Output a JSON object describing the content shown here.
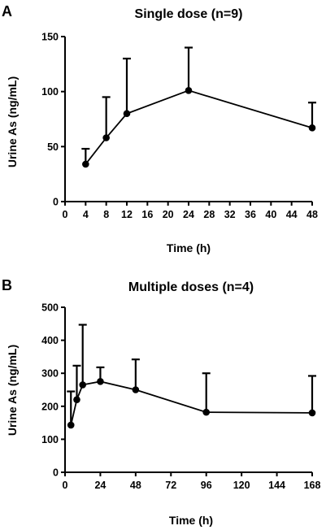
{
  "chart_data": [
    {
      "type": "line",
      "panel": "A",
      "title": "Single dose (n=9)",
      "xlabel": "Time (h)",
      "ylabel": "Urine As (ng/mL)",
      "xlim": [
        0,
        48
      ],
      "ylim": [
        0,
        150
      ],
      "x_ticks": [
        0,
        4,
        8,
        12,
        16,
        20,
        24,
        28,
        32,
        36,
        40,
        44,
        48
      ],
      "y_ticks": [
        0,
        50,
        100,
        150
      ],
      "grid": false,
      "legend": "none",
      "series": [
        {
          "x": [
            4,
            8,
            12,
            24,
            48
          ],
          "y": [
            34,
            58,
            80,
            101,
            67
          ],
          "error_upper": [
            48,
            95,
            130,
            140,
            90
          ]
        }
      ]
    },
    {
      "type": "line",
      "panel": "B",
      "title": "Multiple doses (n=4)",
      "xlabel": "Time (h)",
      "ylabel": "Urine As (ng/mL)",
      "xlim": [
        0,
        168
      ],
      "ylim": [
        0,
        500
      ],
      "x_ticks": [
        0,
        24,
        48,
        72,
        96,
        120,
        144,
        168
      ],
      "y_ticks": [
        0,
        100,
        200,
        300,
        400,
        500
      ],
      "grid": false,
      "legend": "none",
      "series": [
        {
          "x": [
            4,
            8,
            12,
            24,
            48,
            96,
            168
          ],
          "y": [
            143,
            220,
            265,
            275,
            250,
            182,
            180
          ],
          "error_upper": [
            245,
            323,
            447,
            318,
            342,
            300,
            292
          ]
        }
      ]
    }
  ]
}
